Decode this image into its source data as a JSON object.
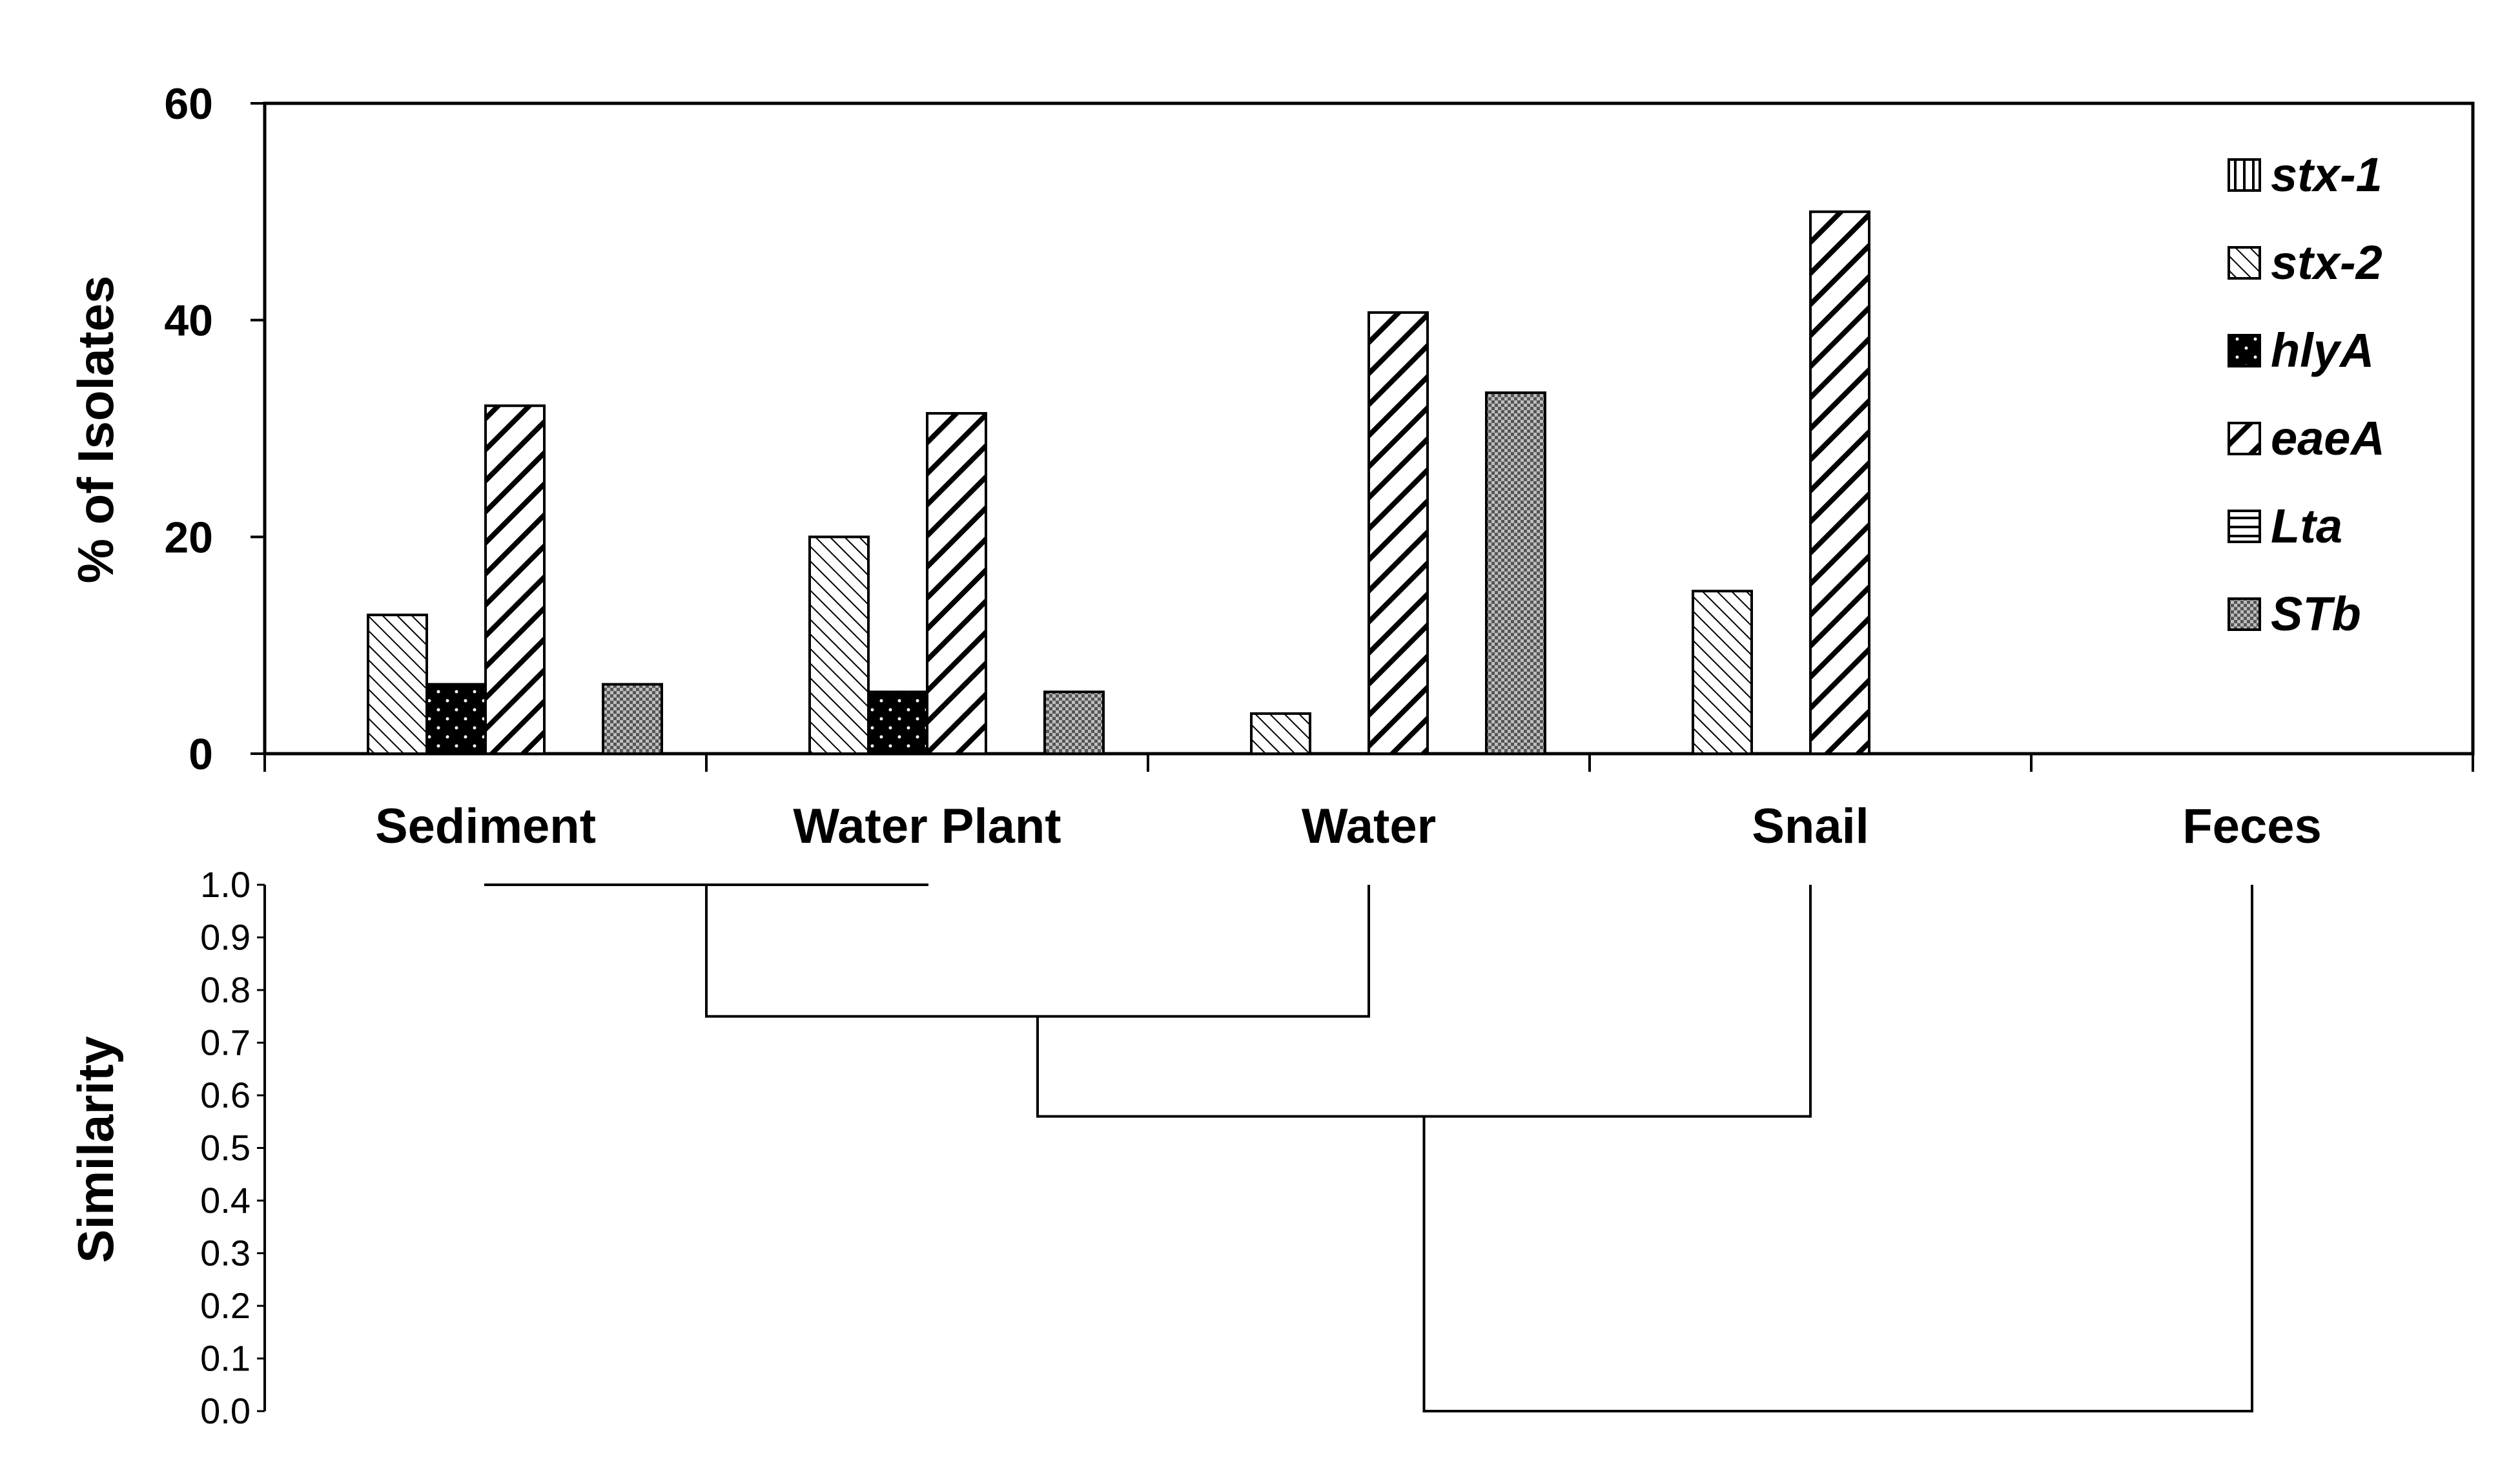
{
  "chart_data": [
    {
      "type": "bar",
      "ylabel": "% of Isolates",
      "ylim": [
        0,
        60
      ],
      "yticks": [
        "0",
        "20",
        "40",
        "60"
      ],
      "categories": [
        "Sediment",
        "Water Plant",
        "Water",
        "Snail",
        "Feces"
      ],
      "legend_position": "top-right",
      "series": [
        {
          "name": "stx-1",
          "pattern": "vertical-lines",
          "values": [
            0,
            0,
            0,
            0,
            0
          ]
        },
        {
          "name": "stx-2",
          "pattern": "dense-backslash",
          "values": [
            12.8,
            20.0,
            3.7,
            15.0,
            0
          ]
        },
        {
          "name": "hlyA",
          "pattern": "black-dotted",
          "values": [
            6.4,
            5.7,
            0,
            0,
            0
          ]
        },
        {
          "name": "eaeA",
          "pattern": "wide-slash",
          "values": [
            32.1,
            31.4,
            40.7,
            50.0,
            0
          ]
        },
        {
          "name": "Lta",
          "pattern": "horizontal-lines",
          "values": [
            0,
            0,
            0,
            0,
            0
          ]
        },
        {
          "name": "STb",
          "pattern": "crosshatch",
          "values": [
            6.4,
            5.7,
            33.3,
            0,
            0
          ]
        }
      ],
      "grid": false
    },
    {
      "type": "dendrogram",
      "ylabel": "Similarity",
      "ylim": [
        0,
        1
      ],
      "yticks": [
        "0.0",
        "0.1",
        "0.2",
        "0.3",
        "0.4",
        "0.5",
        "0.6",
        "0.7",
        "0.8",
        "0.9",
        "1.0"
      ],
      "leaves": [
        "Sediment",
        "Water Plant",
        "Water",
        "Snail",
        "Feces"
      ],
      "merges": [
        {
          "left": "Sediment",
          "right": "Water Plant",
          "similarity": 1.0
        },
        {
          "left": "Sediment+Water Plant",
          "right": "Water",
          "similarity": 0.75
        },
        {
          "left": "Sediment+Water Plant+Water",
          "right": "Snail",
          "similarity": 0.56
        },
        {
          "left": "Sediment+Water Plant+Water+Snail",
          "right": "Feces",
          "similarity": 0.0
        }
      ]
    }
  ]
}
